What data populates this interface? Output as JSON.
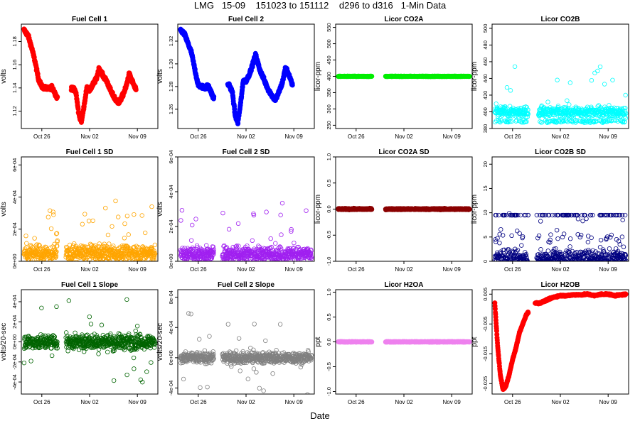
{
  "page": {
    "title": "LMG   15-09    151023 to 151112    d296 to d316   1-Min Data",
    "xlabel": "Date"
  },
  "x_tick_labels": [
    "Oct 26",
    "Nov 02",
    "Nov 09"
  ],
  "x_tick_days": [
    3,
    10,
    17
  ],
  "x_range_days": [
    0,
    20
  ],
  "chart_data": [
    {
      "type": "scatter",
      "title": "Fuel Cell 1",
      "ylabel": "volts",
      "color": "#ff0000",
      "marker": "filled",
      "ylim": [
        1.105,
        1.195
      ],
      "yticks": [
        1.12,
        1.14,
        1.16,
        1.18
      ],
      "ytick_labels": [
        "1.12",
        "1.14",
        "1.16",
        "1.18"
      ],
      "gaps": [
        [
          5.3,
          7.3
        ]
      ],
      "base_x": [
        0,
        1,
        2,
        3,
        4,
        5,
        6,
        7,
        8,
        9,
        10,
        11,
        12,
        13,
        14,
        15,
        16,
        17,
        18,
        19,
        20
      ],
      "noise": 0.0015,
      "series_points": [
        [
          0.4,
          1.19
        ],
        [
          1,
          1.185
        ],
        [
          1.5,
          1.175
        ],
        [
          2,
          1.163
        ],
        [
          2.5,
          1.148
        ],
        [
          3,
          1.141
        ],
        [
          3.5,
          1.14
        ],
        [
          4,
          1.139
        ],
        [
          4.5,
          1.141
        ],
        [
          5.2,
          1.132
        ],
        [
          7.5,
          1.14
        ],
        [
          8,
          1.136
        ],
        [
          8.4,
          1.118
        ],
        [
          8.8,
          1.111
        ],
        [
          9.2,
          1.125
        ],
        [
          9.6,
          1.14
        ],
        [
          10,
          1.138
        ],
        [
          10.5,
          1.143
        ],
        [
          11,
          1.148
        ],
        [
          11.4,
          1.157
        ],
        [
          12,
          1.15
        ],
        [
          12.5,
          1.146
        ],
        [
          13.2,
          1.136
        ],
        [
          13.8,
          1.13
        ],
        [
          14.3,
          1.127
        ],
        [
          14.8,
          1.133
        ],
        [
          15.3,
          1.14
        ],
        [
          15.8,
          1.152
        ],
        [
          16.3,
          1.145
        ],
        [
          16.8,
          1.138
        ]
      ]
    },
    {
      "type": "scatter",
      "title": "Fuel Cell 2",
      "ylabel": "volts",
      "color": "#0000ff",
      "marker": "filled",
      "ylim": [
        1.243,
        1.335
      ],
      "yticks": [
        1.26,
        1.28,
        1.3,
        1.32
      ],
      "ytick_labels": [
        "1.26",
        "1.28",
        "1.30",
        "1.32"
      ],
      "gaps": [
        [
          5.3,
          7.3
        ]
      ],
      "noise": 0.0015,
      "series_points": [
        [
          0.4,
          1.33
        ],
        [
          1,
          1.326
        ],
        [
          1.5,
          1.318
        ],
        [
          2,
          1.31
        ],
        [
          2.5,
          1.295
        ],
        [
          3,
          1.281
        ],
        [
          3.5,
          1.28
        ],
        [
          4,
          1.279
        ],
        [
          4.5,
          1.281
        ],
        [
          5.2,
          1.27
        ],
        [
          7.5,
          1.282
        ],
        [
          8,
          1.275
        ],
        [
          8.4,
          1.255
        ],
        [
          8.8,
          1.248
        ],
        [
          9.2,
          1.265
        ],
        [
          9.6,
          1.285
        ],
        [
          10,
          1.285
        ],
        [
          10.5,
          1.291
        ],
        [
          11,
          1.3
        ],
        [
          11.4,
          1.308
        ],
        [
          12,
          1.295
        ],
        [
          12.5,
          1.288
        ],
        [
          13.2,
          1.278
        ],
        [
          13.8,
          1.272
        ],
        [
          14.3,
          1.268
        ],
        [
          14.8,
          1.275
        ],
        [
          15.3,
          1.283
        ],
        [
          15.8,
          1.297
        ],
        [
          16.3,
          1.29
        ],
        [
          16.8,
          1.281
        ]
      ]
    },
    {
      "type": "scatter",
      "title": "Licor CO2A",
      "ylabel": "licor-ppm",
      "color": "#00ee00",
      "marker": "filled",
      "ylim": [
        240,
        560
      ],
      "yticks": [
        250,
        300,
        350,
        400,
        450,
        500,
        550
      ],
      "ytick_labels": [
        "250",
        "300",
        "350",
        "400",
        "450",
        "500",
        "550"
      ],
      "gaps": [
        [
          5.3,
          7.3
        ],
        [
          11.2,
          11.4
        ]
      ],
      "noise": 0.5,
      "series_points": [
        [
          0.4,
          400
        ],
        [
          20,
          400
        ]
      ]
    },
    {
      "type": "scatter",
      "title": "Licor CO2B",
      "ylabel": "licor-ppm",
      "color": "#00ffff",
      "marker": "open",
      "ylim": [
        380,
        505
      ],
      "yticks": [
        380,
        400,
        420,
        440,
        460,
        480,
        500
      ],
      "ytick_labels": [
        "380",
        "400",
        "420",
        "440",
        "460",
        "480",
        "500"
      ],
      "gaps": [
        [
          5.3,
          6.8
        ]
      ],
      "noise": 6,
      "series_points": [
        [
          0.4,
          400
        ],
        [
          20,
          400
        ]
      ]
    },
    {
      "type": "scatter",
      "title": "Fuel Cell 1 SD",
      "ylabel": "volts",
      "color": "#ffa500",
      "marker": "open",
      "ylim": [
        0,
        0.00065
      ],
      "yticks": [
        0,
        0.0002,
        0.0004,
        0.0006
      ],
      "ytick_labels": [
        "0e+00",
        "2e-04",
        "4e-04",
        "6e-04"
      ],
      "gaps": [
        [
          5.3,
          6.5
        ]
      ],
      "noise": 5e-05,
      "series_points": [
        [
          0.4,
          5e-05
        ],
        [
          20,
          5e-05
        ]
      ]
    },
    {
      "type": "scatter",
      "title": "Fuel Cell 2 SD",
      "ylabel": "volts",
      "color": "#a020f0",
      "marker": "open",
      "ylim": [
        0,
        0.0006
      ],
      "yticks": [
        0,
        0.0002,
        0.0004,
        0.0006
      ],
      "ytick_labels": [
        "0e+00",
        "2e-04",
        "4e-04",
        "6e-04"
      ],
      "gaps": [
        [
          5.3,
          6.5
        ]
      ],
      "noise": 4e-05,
      "series_points": [
        [
          0.4,
          4e-05
        ],
        [
          20,
          4e-05
        ]
      ]
    },
    {
      "type": "scatter",
      "title": "Licor CO2A SD",
      "ylabel": "licor-ppm",
      "color": "#8b0000",
      "marker": "filled",
      "ylim": [
        -1,
        1
      ],
      "yticks": [
        -1,
        -0.5,
        0,
        0.5,
        1
      ],
      "ytick_labels": [
        "-1.0",
        "-0.5",
        "0.0",
        "0.5",
        "1.0"
      ],
      "gaps": [
        [
          5.3,
          7.3
        ],
        [
          11.2,
          11.4
        ]
      ],
      "noise": 0.01,
      "series_points": [
        [
          0.4,
          0
        ],
        [
          20,
          0
        ]
      ]
    },
    {
      "type": "scatter",
      "title": "Licor CO2B SD",
      "ylabel": "licor-ppm",
      "color": "#000080",
      "marker": "open",
      "ylim": [
        0,
        21.5
      ],
      "yticks": [
        0,
        5,
        10,
        15,
        20
      ],
      "ytick_labels": [
        "0",
        "5",
        "10",
        "15",
        "20"
      ],
      "gaps": [
        [
          5.3,
          6.5
        ]
      ],
      "noise": 1.5,
      "series_points": [
        [
          0.4,
          0.5
        ],
        [
          20,
          0.5
        ]
      ]
    },
    {
      "type": "scatter",
      "title": "Fuel Cell 1 Slope",
      "ylabel": "volts/20-sec",
      "color": "#006400",
      "marker": "open",
      "ylim": [
        -0.00052,
        0.00052
      ],
      "yticks": [
        -0.0004,
        -0.0002,
        0,
        0.0002,
        0.0004
      ],
      "ytick_labels": [
        "-4e-04",
        "-2e-04",
        "0e+00",
        "2e-04",
        "4e-04"
      ],
      "gaps": [
        [
          5.3,
          6.5
        ]
      ],
      "noise": 7e-05,
      "series_points": [
        [
          0.4,
          0
        ],
        [
          20,
          0
        ]
      ]
    },
    {
      "type": "scatter",
      "title": "Fuel Cell 2 Slope",
      "ylabel": "volts/20-sec",
      "color": "#808080",
      "marker": "open",
      "ylim": [
        -0.00048,
        0.0009
      ],
      "yticks": [
        -0.0004,
        0,
        0.0004,
        0.0008
      ],
      "ytick_labels": [
        "-4e-04",
        "0e+00",
        "4e-04",
        "8e-04"
      ],
      "gaps": [
        [
          5.3,
          6.5
        ]
      ],
      "noise": 7e-05,
      "series_points": [
        [
          0.4,
          0
        ],
        [
          20,
          0
        ]
      ]
    },
    {
      "type": "scatter",
      "title": "Licor H2OA",
      "ylabel": "ppt",
      "color": "#ee82ee",
      "marker": "filled",
      "ylim": [
        -1.05,
        1.05
      ],
      "yticks": [
        -1,
        -0.5,
        0,
        0.5,
        1
      ],
      "ytick_labels": [
        "-1.0",
        "-0.5",
        "0.0",
        "0.5",
        "1.0"
      ],
      "gaps": [
        [
          5.3,
          7.3
        ],
        [
          11.2,
          11.4
        ]
      ],
      "noise": 0.005,
      "series_points": [
        [
          0.4,
          0
        ],
        [
          20,
          0
        ]
      ]
    },
    {
      "type": "scatter",
      "title": "Licor H2OB",
      "ylabel": "ppt",
      "color": "#ff0000",
      "marker": "filled",
      "ylim": [
        -0.0285,
        0.0065
      ],
      "yticks": [
        -0.025,
        -0.015,
        -0.005,
        0.005
      ],
      "ytick_labels": [
        "-0.025",
        "-0.015",
        "-0.005",
        "0.005"
      ],
      "gaps": [
        [
          5.3,
          6.3
        ]
      ],
      "noise": 0.0002,
      "series_points": [
        [
          0.4,
          0.002
        ],
        [
          0.8,
          -0.012
        ],
        [
          1.2,
          -0.022
        ],
        [
          1.6,
          -0.027
        ],
        [
          2,
          -0.026
        ],
        [
          2.5,
          -0.022
        ],
        [
          3,
          -0.017
        ],
        [
          3.5,
          -0.013
        ],
        [
          4,
          -0.008
        ],
        [
          4.5,
          -0.005
        ],
        [
          5,
          -0.002
        ],
        [
          5.3,
          -0.001
        ],
        [
          6.3,
          0.002
        ],
        [
          7,
          0.002
        ],
        [
          8,
          0.003
        ],
        [
          9,
          0.004
        ],
        [
          10,
          0.0045
        ],
        [
          11,
          0.0045
        ],
        [
          12,
          0.0048
        ],
        [
          13,
          0.0048
        ],
        [
          14,
          0.005
        ],
        [
          15,
          0.0045
        ],
        [
          16,
          0.005
        ],
        [
          17,
          0.005
        ],
        [
          18,
          0.0045
        ],
        [
          19,
          0.0048
        ],
        [
          20,
          0.005
        ]
      ]
    }
  ]
}
